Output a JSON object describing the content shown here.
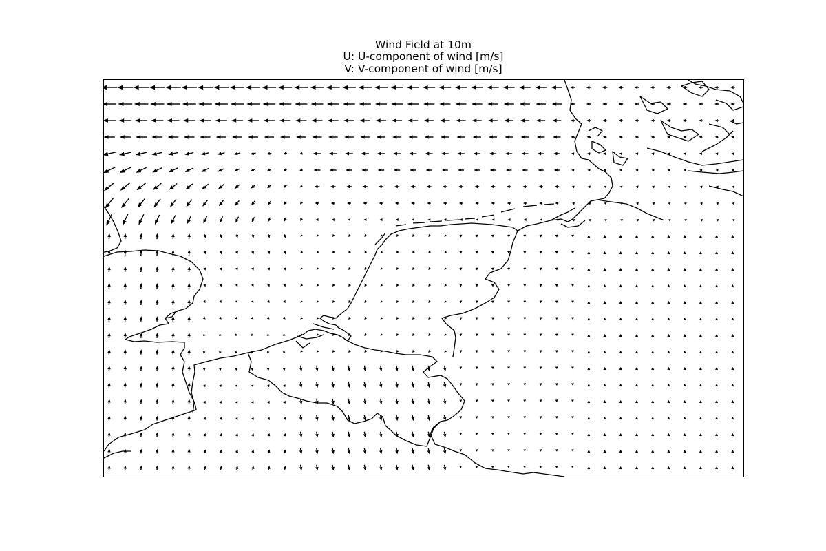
{
  "figure": {
    "title_line1": "Wind Field at 10m",
    "title_line2": "U: U-component of wind [m/s]",
    "title_line3": "V: V-component of wind [m/s]"
  },
  "map": {
    "kind": "wind vector (quiver) plot over basemap",
    "region_shown": "North Sea, Netherlands, Belgium, Denmark, NW Germany, SE England",
    "coastline_color": "#000000",
    "arrow_color": "#000000",
    "background_color": "#ffffff",
    "layers": [
      "coastlines",
      "country borders",
      "wind vectors"
    ]
  },
  "chart_data": {
    "type": "quiver",
    "title": "Wind Field at 10m",
    "subtitle": [
      "U: U-component of wind [m/s]",
      "V: V-component of wind [m/s]"
    ],
    "grid_shape": [
      24,
      40
    ],
    "description_of_field": [
      "Northern band (rows 0-8): strong easterly flow (arrows pointing west), strongest in the north-west",
      "North-west corner below the band: flow curving from west-south-west to south",
      "West side over England and Channel: southerly flow (arrows pointing north)",
      "Central Netherlands / Belgium: weak, variable flow",
      "South-central (Belgium/NW Germany): northerly flow (arrows pointing south)",
      "East side (Germany, Denmark): weak southerly flow (arrows pointing north)"
    ]
  }
}
